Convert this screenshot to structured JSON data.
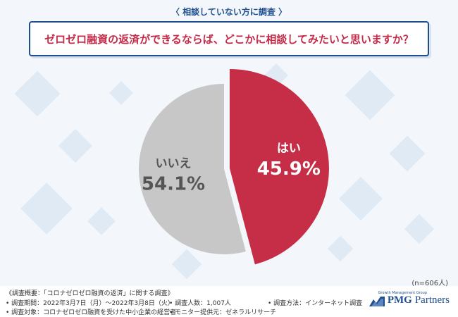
{
  "header": {
    "caption": "〈 相談していない方に調査 〉",
    "question": "ゼロゼロ融資の返済ができるならば、どこかに相談してみたいと思いますか？"
  },
  "chart_data": {
    "type": "pie",
    "slices": [
      {
        "label": "はい",
        "value": 45.9,
        "display": "45.9%",
        "color": "#c62e47"
      },
      {
        "label": "いいえ",
        "value": 54.1,
        "display": "54.1%",
        "color": "#c7c7c7"
      }
    ],
    "note": "(n=606人)"
  },
  "footer": {
    "overview": "《調査概要：「コロナゼロゼロ融資の返済」に関する調査》",
    "period": "• 調査期間：2022年3月7日（月）〜2022年3月8日（火）",
    "respondents": "• 調査人数：1,007人",
    "method": "• 調査方法：インターネット調査",
    "target": "• 調査対象：コロナゼロゼロ融資を受けた中小企業の経営者",
    "provider": "• モニター提供元：ゼネラルリサーチ"
  },
  "logo": {
    "small": "Growth Management Group",
    "pmg": "PMG",
    "partners": "Partners"
  }
}
